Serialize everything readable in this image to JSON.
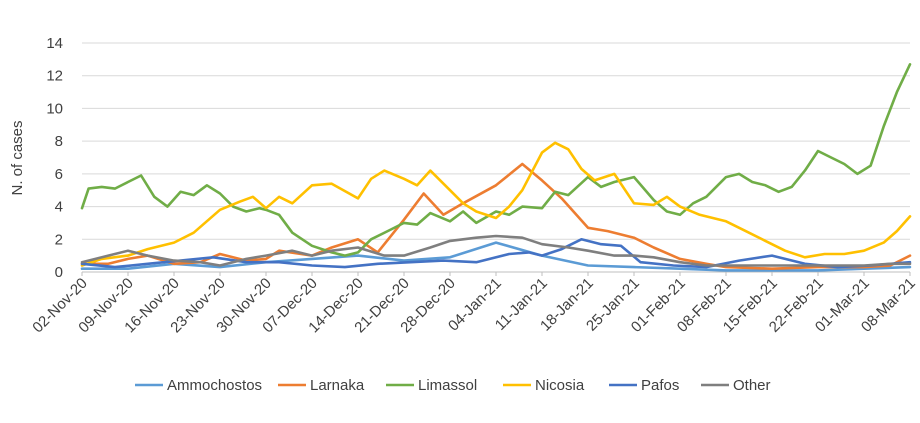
{
  "chart_data": {
    "type": "line",
    "title": "",
    "xlabel": "",
    "ylabel": "N. of cases",
    "ylim": [
      0,
      14
    ],
    "yticks": [
      0,
      2,
      4,
      6,
      8,
      10,
      12,
      14
    ],
    "x_start": "2020-11-02",
    "xticks": [
      "02-Nov-20",
      "09-Nov-20",
      "16-Nov-20",
      "23-Nov-20",
      "30-Nov-20",
      "07-Dec-20",
      "14-Dec-20",
      "21-Dec-20",
      "28-Dec-20",
      "04-Jan-21",
      "11-Jan-21",
      "18-Jan-21",
      "25-Jan-21",
      "01-Feb-21",
      "08-Feb-21",
      "15-Feb-21",
      "22-Feb-21",
      "01-Mar-21",
      "08-Mar-21"
    ],
    "grid": "horizontal",
    "legend_position": "bottom",
    "series": [
      {
        "name": "Ammochostos",
        "color": "#5b9bd5",
        "points": [
          [
            0,
            0.2
          ],
          [
            7,
            0.2
          ],
          [
            14,
            0.5
          ],
          [
            21,
            0.3
          ],
          [
            28,
            0.6
          ],
          [
            35,
            0.8
          ],
          [
            42,
            1.0
          ],
          [
            49,
            0.7
          ],
          [
            56,
            0.9
          ],
          [
            63,
            1.8
          ],
          [
            70,
            1.0
          ],
          [
            77,
            0.4
          ],
          [
            84,
            0.3
          ],
          [
            91,
            0.2
          ],
          [
            98,
            0.1
          ],
          [
            105,
            0.1
          ],
          [
            112,
            0.1
          ],
          [
            119,
            0.2
          ],
          [
            126,
            0.3
          ]
        ]
      },
      {
        "name": "Larnaka",
        "color": "#ed7d31",
        "points": [
          [
            0,
            0.5
          ],
          [
            4,
            0.5
          ],
          [
            7,
            0.8
          ],
          [
            10,
            1.0
          ],
          [
            14,
            0.5
          ],
          [
            18,
            0.6
          ],
          [
            21,
            1.1
          ],
          [
            25,
            0.7
          ],
          [
            28,
            0.8
          ],
          [
            30,
            1.3
          ],
          [
            35,
            1.0
          ],
          [
            38,
            1.5
          ],
          [
            42,
            2.0
          ],
          [
            45,
            1.2
          ],
          [
            49,
            3.2
          ],
          [
            52,
            4.8
          ],
          [
            55,
            3.5
          ],
          [
            58,
            4.2
          ],
          [
            63,
            5.3
          ],
          [
            67,
            6.6
          ],
          [
            70,
            5.6
          ],
          [
            73,
            4.5
          ],
          [
            77,
            2.7
          ],
          [
            80,
            2.5
          ],
          [
            84,
            2.1
          ],
          [
            87,
            1.5
          ],
          [
            91,
            0.8
          ],
          [
            95,
            0.5
          ],
          [
            98,
            0.3
          ],
          [
            105,
            0.2
          ],
          [
            112,
            0.3
          ],
          [
            119,
            0.3
          ],
          [
            123,
            0.4
          ],
          [
            126,
            1.0
          ]
        ]
      },
      {
        "name": "Limassol",
        "color": "#70ad47",
        "points": [
          [
            0,
            3.9
          ],
          [
            1,
            5.1
          ],
          [
            3,
            5.2
          ],
          [
            5,
            5.1
          ],
          [
            7,
            5.5
          ],
          [
            9,
            5.9
          ],
          [
            11,
            4.6
          ],
          [
            13,
            4.0
          ],
          [
            15,
            4.9
          ],
          [
            17,
            4.7
          ],
          [
            19,
            5.3
          ],
          [
            21,
            4.8
          ],
          [
            23,
            4.0
          ],
          [
            25,
            3.7
          ],
          [
            27,
            3.9
          ],
          [
            28,
            3.8
          ],
          [
            30,
            3.5
          ],
          [
            32,
            2.4
          ],
          [
            35,
            1.6
          ],
          [
            38,
            1.2
          ],
          [
            40,
            1.0
          ],
          [
            42,
            1.2
          ],
          [
            44,
            2.0
          ],
          [
            47,
            2.6
          ],
          [
            49,
            3.0
          ],
          [
            51,
            2.9
          ],
          [
            53,
            3.6
          ],
          [
            56,
            3.1
          ],
          [
            58,
            3.7
          ],
          [
            60,
            3.0
          ],
          [
            63,
            3.7
          ],
          [
            65,
            3.5
          ],
          [
            67,
            4.0
          ],
          [
            70,
            3.9
          ],
          [
            72,
            4.9
          ],
          [
            74,
            4.7
          ],
          [
            77,
            5.8
          ],
          [
            79,
            5.2
          ],
          [
            81,
            5.5
          ],
          [
            84,
            5.8
          ],
          [
            87,
            4.4
          ],
          [
            89,
            3.7
          ],
          [
            91,
            3.5
          ],
          [
            93,
            4.2
          ],
          [
            95,
            4.6
          ],
          [
            98,
            5.8
          ],
          [
            100,
            6.0
          ],
          [
            102,
            5.5
          ],
          [
            104,
            5.3
          ],
          [
            106,
            4.9
          ],
          [
            108,
            5.2
          ],
          [
            110,
            6.2
          ],
          [
            112,
            7.4
          ],
          [
            114,
            7.0
          ],
          [
            116,
            6.6
          ],
          [
            118,
            6.0
          ],
          [
            120,
            6.5
          ],
          [
            122,
            8.9
          ],
          [
            124,
            11.0
          ],
          [
            126,
            12.7
          ]
        ]
      },
      {
        "name": "Nicosia",
        "color": "#ffc000",
        "points": [
          [
            0,
            0.4
          ],
          [
            3,
            0.8
          ],
          [
            7,
            1.0
          ],
          [
            10,
            1.4
          ],
          [
            14,
            1.8
          ],
          [
            17,
            2.4
          ],
          [
            21,
            3.8
          ],
          [
            24,
            4.3
          ],
          [
            26,
            4.6
          ],
          [
            28,
            3.9
          ],
          [
            30,
            4.6
          ],
          [
            32,
            4.2
          ],
          [
            35,
            5.3
          ],
          [
            38,
            5.4
          ],
          [
            42,
            4.5
          ],
          [
            44,
            5.7
          ],
          [
            46,
            6.2
          ],
          [
            49,
            5.7
          ],
          [
            51,
            5.3
          ],
          [
            53,
            6.2
          ],
          [
            56,
            5.0
          ],
          [
            58,
            4.2
          ],
          [
            60,
            3.7
          ],
          [
            63,
            3.3
          ],
          [
            65,
            4.0
          ],
          [
            67,
            5.0
          ],
          [
            70,
            7.3
          ],
          [
            72,
            7.9
          ],
          [
            74,
            7.5
          ],
          [
            76,
            6.3
          ],
          [
            78,
            5.6
          ],
          [
            81,
            6.0
          ],
          [
            84,
            4.2
          ],
          [
            87,
            4.1
          ],
          [
            89,
            4.6
          ],
          [
            91,
            4.0
          ],
          [
            94,
            3.5
          ],
          [
            98,
            3.1
          ],
          [
            101,
            2.5
          ],
          [
            104,
            1.9
          ],
          [
            107,
            1.3
          ],
          [
            110,
            0.9
          ],
          [
            113,
            1.1
          ],
          [
            116,
            1.1
          ],
          [
            119,
            1.3
          ],
          [
            122,
            1.8
          ],
          [
            124,
            2.5
          ],
          [
            126,
            3.4
          ]
        ]
      },
      {
        "name": "Pafos",
        "color": "#4472c4",
        "points": [
          [
            0,
            0.5
          ],
          [
            5,
            0.3
          ],
          [
            10,
            0.5
          ],
          [
            15,
            0.7
          ],
          [
            20,
            0.9
          ],
          [
            25,
            0.6
          ],
          [
            30,
            0.6
          ],
          [
            35,
            0.4
          ],
          [
            40,
            0.3
          ],
          [
            45,
            0.5
          ],
          [
            50,
            0.6
          ],
          [
            55,
            0.7
          ],
          [
            60,
            0.6
          ],
          [
            65,
            1.1
          ],
          [
            68,
            1.2
          ],
          [
            70,
            1.0
          ],
          [
            73,
            1.4
          ],
          [
            76,
            2.0
          ],
          [
            79,
            1.7
          ],
          [
            82,
            1.6
          ],
          [
            85,
            0.6
          ],
          [
            90,
            0.4
          ],
          [
            95,
            0.3
          ],
          [
            100,
            0.7
          ],
          [
            105,
            1.0
          ],
          [
            110,
            0.5
          ],
          [
            115,
            0.3
          ],
          [
            120,
            0.4
          ],
          [
            126,
            0.6
          ]
        ]
      },
      {
        "name": "Other",
        "color": "#7f7f7f",
        "points": [
          [
            0,
            0.6
          ],
          [
            4,
            1.0
          ],
          [
            7,
            1.3
          ],
          [
            10,
            1.0
          ],
          [
            14,
            0.7
          ],
          [
            18,
            0.6
          ],
          [
            21,
            0.4
          ],
          [
            25,
            0.8
          ],
          [
            28,
            1.0
          ],
          [
            32,
            1.3
          ],
          [
            35,
            1.0
          ],
          [
            38,
            1.3
          ],
          [
            42,
            1.5
          ],
          [
            46,
            1.0
          ],
          [
            49,
            1.0
          ],
          [
            53,
            1.5
          ],
          [
            56,
            1.9
          ],
          [
            60,
            2.1
          ],
          [
            63,
            2.2
          ],
          [
            67,
            2.1
          ],
          [
            70,
            1.7
          ],
          [
            74,
            1.5
          ],
          [
            77,
            1.3
          ],
          [
            81,
            1.0
          ],
          [
            84,
            1.0
          ],
          [
            87,
            0.9
          ],
          [
            91,
            0.6
          ],
          [
            95,
            0.4
          ],
          [
            98,
            0.4
          ],
          [
            105,
            0.4
          ],
          [
            112,
            0.4
          ],
          [
            119,
            0.4
          ],
          [
            123,
            0.5
          ],
          [
            126,
            0.5
          ]
        ]
      }
    ]
  }
}
